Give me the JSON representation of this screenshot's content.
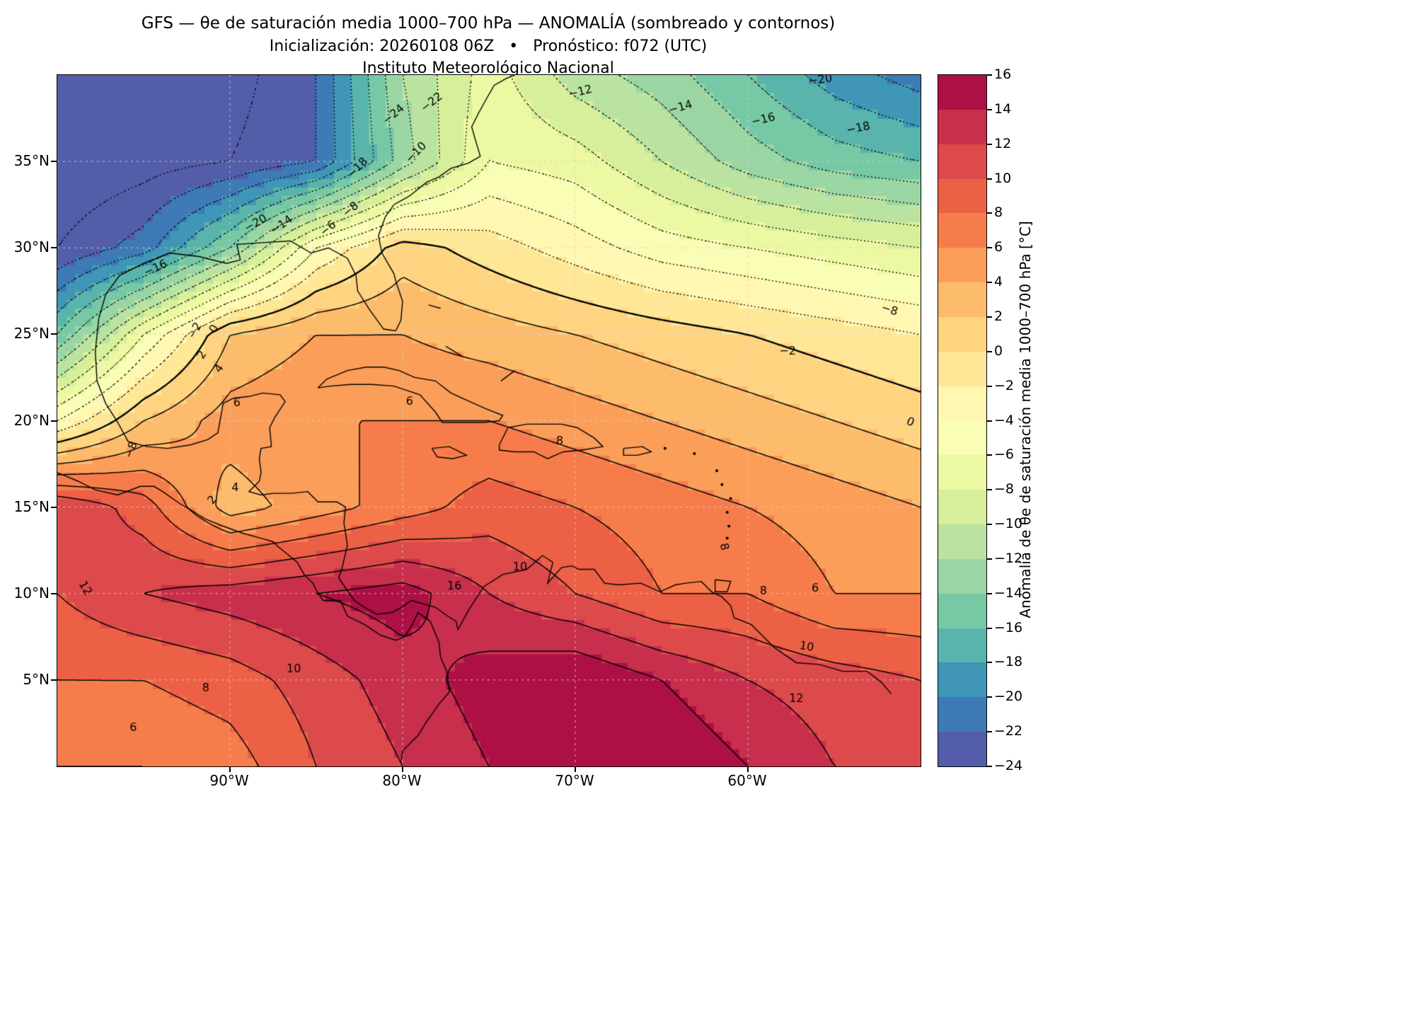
{
  "header": {
    "title": "GFS — θe de saturación media 1000–700 hPa — ANOMALÍA (sombreado y contornos)",
    "subtitle": "Inicialización: 20260108 06Z   •   Pronóstico: f072 (UTC)",
    "institution": "Instituto Meteorológico Nacional"
  },
  "map": {
    "lat_ticks": [
      {
        "v": 35,
        "label": "35°N"
      },
      {
        "v": 30,
        "label": "30°N"
      },
      {
        "v": 25,
        "label": "25°N"
      },
      {
        "v": 20,
        "label": "20°N"
      },
      {
        "v": 15,
        "label": "15°N"
      },
      {
        "v": 10,
        "label": "10°N"
      },
      {
        "v": 5,
        "label": "5°N"
      }
    ],
    "lon_ticks": [
      {
        "v": -90,
        "label": "90°W"
      },
      {
        "v": -80,
        "label": "80°W"
      },
      {
        "v": -70,
        "label": "70°W"
      },
      {
        "v": -60,
        "label": "60°W"
      }
    ],
    "grid_dashed": true
  },
  "colorbar": {
    "label": "Anomalía de θe de saturación media 1000–700 hPa [°C]",
    "min": -24,
    "max": 16,
    "step": 2,
    "colors": [
      "#535DA9",
      "#3D7AB6",
      "#3F96B7",
      "#59B4AB",
      "#77C9A5",
      "#9AD6A4",
      "#BAE3A1",
      "#D7EF9B",
      "#ECF8A2",
      "#F9FDB5",
      "#FFF7B2",
      "#FEE898",
      "#FED481",
      "#FDBB6C",
      "#FB9E5A",
      "#F67D4B",
      "#EC6146",
      "#DD4A4C",
      "#C72F4C",
      "#AC1045"
    ],
    "tick_values": [
      16,
      14,
      12,
      10,
      8,
      6,
      4,
      2,
      0,
      -2,
      -4,
      -6,
      -8,
      -10,
      -12,
      -14,
      -16,
      -18,
      -20,
      -22,
      -24
    ],
    "tick_labels": [
      "16",
      "14",
      "12",
      "10",
      "8",
      "6",
      "4",
      "2",
      "0",
      "−2",
      "−4",
      "−6",
      "−8",
      "−10",
      "−12",
      "−14",
      "−16",
      "−18",
      "−20",
      "−22",
      "−24"
    ]
  },
  "chart_data": {
    "type": "heatmap",
    "title": "GFS — θe de saturación media 1000–700 hPa — ANOMALÍA (sombreado y contornos)",
    "xlabel": "",
    "ylabel": "",
    "units": "°C",
    "colormap": "Spectral_r",
    "contour_interval": 2,
    "negative_contours_dotted": true,
    "lon_range": [
      -100,
      -50
    ],
    "lat_range": [
      0,
      40
    ],
    "lon": [
      -100,
      -95,
      -90,
      -85,
      -80,
      -75,
      -70,
      -65,
      -60,
      -55,
      -50
    ],
    "lat": [
      40,
      35,
      30,
      25,
      20,
      15,
      10,
      5,
      0
    ],
    "values": [
      [
        -26,
        -26,
        -25,
        -22,
        -12,
        -7,
        -11,
        -13,
        -16,
        -19,
        -21
      ],
      [
        -26,
        -25,
        -24,
        -22,
        -13,
        -6,
        -7,
        -10,
        -13,
        -15,
        -16
      ],
      [
        -24,
        -21,
        -14,
        -4,
        1,
        -1,
        -3,
        -5,
        -6,
        -7,
        -8
      ],
      [
        -16,
        -6,
        2,
        4,
        4,
        3,
        2,
        1,
        0,
        -1,
        -2
      ],
      [
        -4,
        2,
        5,
        6,
        6,
        6,
        5,
        4,
        3,
        2,
        1
      ],
      [
        12,
        9,
        3,
        5,
        7,
        9,
        8,
        7,
        6,
        5,
        4
      ],
      [
        10,
        12,
        13,
        14,
        15,
        12,
        10,
        8,
        8,
        6,
        6
      ],
      [
        8,
        8,
        9,
        11,
        13,
        15,
        16,
        14,
        12,
        11,
        10
      ],
      [
        6,
        6,
        7,
        10,
        12,
        14,
        16,
        16,
        14,
        12,
        12
      ]
    ],
    "contour_labels": [
      {
        "t": "−24",
        "lon": -80.5,
        "lat": 37.7,
        "r": -40
      },
      {
        "t": "−22",
        "lon": -78.3,
        "lat": 38.4,
        "r": -38
      },
      {
        "t": "−18",
        "lon": -82.6,
        "lat": 34.6,
        "r": -45
      },
      {
        "t": "−20",
        "lon": -88.5,
        "lat": 31.4,
        "r": -30
      },
      {
        "t": "−16",
        "lon": -94.3,
        "lat": 28.8,
        "r": -25
      },
      {
        "t": "−14",
        "lon": -87.0,
        "lat": 31.3,
        "r": -35
      },
      {
        "t": "−10",
        "lon": -79.2,
        "lat": 35.5,
        "r": -45
      },
      {
        "t": "−8",
        "lon": -83.0,
        "lat": 32.2,
        "r": -40
      },
      {
        "t": "−6",
        "lon": -84.3,
        "lat": 31.1,
        "r": -40
      },
      {
        "t": "−12",
        "lon": -69.7,
        "lat": 39.0,
        "r": -14
      },
      {
        "t": "−14",
        "lon": -63.9,
        "lat": 38.1,
        "r": -16
      },
      {
        "t": "−16",
        "lon": -59.1,
        "lat": 37.4,
        "r": -14
      },
      {
        "t": "−18",
        "lon": -53.6,
        "lat": 36.9,
        "r": -12
      },
      {
        "t": "−20",
        "lon": -55.8,
        "lat": 39.7,
        "r": -8
      },
      {
        "t": "−2",
        "lon": -92.0,
        "lat": 25.2,
        "r": -60
      },
      {
        "t": "0",
        "lon": -90.9,
        "lat": 25.3,
        "r": -60
      },
      {
        "t": "2",
        "lon": -91.6,
        "lat": 23.8,
        "r": -58
      },
      {
        "t": "4",
        "lon": -90.6,
        "lat": 23.0,
        "r": -55
      },
      {
        "t": "−2",
        "lon": -57.7,
        "lat": 24.0,
        "r": 0
      },
      {
        "t": "−8",
        "lon": -51.8,
        "lat": 26.4,
        "r": 18
      },
      {
        "t": "0",
        "lon": -50.6,
        "lat": 19.9,
        "r": 24
      },
      {
        "t": "6",
        "lon": -79.6,
        "lat": 21.1,
        "r": 0
      },
      {
        "t": "6",
        "lon": -89.6,
        "lat": 21.0,
        "r": 0
      },
      {
        "t": "−8",
        "lon": -95.7,
        "lat": 18.3,
        "r": -70
      },
      {
        "t": "4",
        "lon": -89.7,
        "lat": 16.1,
        "r": 0
      },
      {
        "t": "2",
        "lon": -91.0,
        "lat": 15.4,
        "r": -50
      },
      {
        "t": "8",
        "lon": -70.9,
        "lat": 18.8,
        "r": 0
      },
      {
        "t": "10",
        "lon": -73.2,
        "lat": 11.5,
        "r": 0
      },
      {
        "t": "16",
        "lon": -77.0,
        "lat": 10.4,
        "r": 0
      },
      {
        "t": "8",
        "lon": -61.4,
        "lat": 12.7,
        "r": 75
      },
      {
        "t": "8",
        "lon": -59.1,
        "lat": 10.1,
        "r": 0
      },
      {
        "t": "6",
        "lon": -56.1,
        "lat": 10.3,
        "r": 0
      },
      {
        "t": "10",
        "lon": -56.6,
        "lat": 6.9,
        "r": 10
      },
      {
        "t": "10",
        "lon": -86.3,
        "lat": 5.6,
        "r": 0
      },
      {
        "t": "8",
        "lon": -91.4,
        "lat": 4.5,
        "r": 0
      },
      {
        "t": "12",
        "lon": -57.2,
        "lat": 3.9,
        "r": 0
      },
      {
        "t": "6",
        "lon": -95.6,
        "lat": 2.2,
        "r": 0
      },
      {
        "t": "12",
        "lon": -98.4,
        "lat": 10.3,
        "r": 60
      }
    ],
    "coastlines": [
      [
        [
          -97.6,
          25.9
        ],
        [
          -97.2,
          27.3
        ],
        [
          -96.4,
          28.4
        ],
        [
          -95.0,
          29.1
        ],
        [
          -93.5,
          29.7
        ],
        [
          -91.8,
          29.5
        ],
        [
          -90.2,
          29.1
        ],
        [
          -89.4,
          29.3
        ],
        [
          -89.6,
          30.2
        ],
        [
          -88.1,
          30.3
        ],
        [
          -86.5,
          30.4
        ],
        [
          -85.3,
          29.7
        ],
        [
          -84.3,
          30.0
        ],
        [
          -83.2,
          29.4
        ],
        [
          -82.7,
          28.4
        ],
        [
          -82.6,
          27.5
        ],
        [
          -81.9,
          26.4
        ],
        [
          -81.1,
          25.3
        ],
        [
          -80.4,
          25.2
        ],
        [
          -80.1,
          25.8
        ],
        [
          -80.0,
          26.9
        ],
        [
          -80.4,
          28.1
        ],
        [
          -80.5,
          28.5
        ],
        [
          -81.2,
          29.7
        ],
        [
          -81.4,
          30.7
        ],
        [
          -81.0,
          31.8
        ],
        [
          -80.5,
          32.5
        ],
        [
          -79.6,
          33.0
        ],
        [
          -78.6,
          33.8
        ],
        [
          -77.9,
          34.1
        ],
        [
          -77.2,
          34.6
        ],
        [
          -76.2,
          34.9
        ],
        [
          -75.5,
          35.3
        ],
        [
          -75.8,
          36.3
        ],
        [
          -76.0,
          37.0
        ],
        [
          -75.6,
          37.8
        ],
        [
          -75.1,
          38.7
        ],
        [
          -74.7,
          39.4
        ],
        [
          -74.0,
          39.8
        ],
        [
          -73.5,
          40.0
        ]
      ],
      [
        [
          -97.6,
          25.9
        ],
        [
          -97.8,
          24.0
        ],
        [
          -97.7,
          22.3
        ],
        [
          -97.2,
          21.0
        ],
        [
          -96.5,
          19.9
        ],
        [
          -95.9,
          18.8
        ],
        [
          -94.8,
          18.5
        ],
        [
          -93.6,
          18.4
        ],
        [
          -92.3,
          18.6
        ],
        [
          -91.3,
          18.9
        ],
        [
          -90.7,
          19.3
        ],
        [
          -90.5,
          20.4
        ],
        [
          -90.4,
          21.0
        ],
        [
          -89.8,
          21.3
        ],
        [
          -88.9,
          21.4
        ],
        [
          -88.1,
          21.6
        ],
        [
          -87.1,
          21.5
        ],
        [
          -86.8,
          21.1
        ],
        [
          -87.4,
          20.2
        ],
        [
          -87.7,
          19.6
        ],
        [
          -87.6,
          18.5
        ],
        [
          -88.2,
          18.4
        ],
        [
          -88.3,
          17.8
        ],
        [
          -88.2,
          17.0
        ],
        [
          -88.3,
          16.5
        ],
        [
          -88.9,
          15.9
        ],
        [
          -88.2,
          15.7
        ],
        [
          -87.5,
          15.8
        ],
        [
          -86.4,
          15.8
        ],
        [
          -85.5,
          15.9
        ],
        [
          -84.9,
          15.3
        ],
        [
          -83.8,
          15.3
        ],
        [
          -83.3,
          15.0
        ],
        [
          -83.4,
          14.1
        ],
        [
          -83.2,
          12.8
        ],
        [
          -83.5,
          11.5
        ],
        [
          -83.7,
          10.9
        ],
        [
          -82.8,
          9.6
        ],
        [
          -82.2,
          9.2
        ],
        [
          -81.5,
          8.8
        ],
        [
          -80.6,
          8.9
        ],
        [
          -79.9,
          9.3
        ],
        [
          -79.5,
          9.6
        ],
        [
          -78.8,
          9.4
        ],
        [
          -78.1,
          9.2
        ],
        [
          -77.4,
          8.7
        ],
        [
          -76.9,
          8.4
        ],
        [
          -76.8,
          7.9
        ]
      ],
      [
        [
          -76.8,
          7.9
        ],
        [
          -76.2,
          9.0
        ],
        [
          -75.3,
          10.4
        ],
        [
          -74.2,
          11.1
        ],
        [
          -72.8,
          11.4
        ],
        [
          -71.9,
          12.2
        ],
        [
          -71.3,
          11.8
        ],
        [
          -71.6,
          10.6
        ],
        [
          -70.8,
          11.5
        ],
        [
          -70.2,
          11.6
        ],
        [
          -69.8,
          11.4
        ],
        [
          -68.9,
          11.4
        ],
        [
          -68.3,
          10.6
        ],
        [
          -67.5,
          10.5
        ],
        [
          -66.2,
          10.6
        ],
        [
          -65.1,
          10.1
        ],
        [
          -64.2,
          10.5
        ],
        [
          -63.6,
          10.6
        ],
        [
          -62.7,
          10.7
        ],
        [
          -62.1,
          10.1
        ],
        [
          -61.5,
          9.8
        ],
        [
          -61.0,
          9.3
        ],
        [
          -60.8,
          8.6
        ],
        [
          -59.8,
          8.2
        ],
        [
          -58.5,
          6.9
        ],
        [
          -57.2,
          6.0
        ],
        [
          -55.9,
          5.9
        ],
        [
          -54.5,
          5.5
        ],
        [
          -53.1,
          5.5
        ],
        [
          -52.3,
          4.9
        ],
        [
          -51.7,
          4.2
        ]
      ],
      [
        [
          -100.0,
          17.0
        ],
        [
          -98.8,
          16.5
        ],
        [
          -97.8,
          16.0
        ],
        [
          -96.5,
          15.7
        ],
        [
          -95.2,
          16.2
        ],
        [
          -94.4,
          16.2
        ],
        [
          -93.9,
          15.9
        ],
        [
          -92.9,
          15.2
        ],
        [
          -92.2,
          14.8
        ],
        [
          -91.4,
          14.3
        ],
        [
          -90.4,
          13.9
        ],
        [
          -89.3,
          13.5
        ],
        [
          -88.2,
          13.2
        ],
        [
          -87.5,
          13.0
        ],
        [
          -87.2,
          12.7
        ],
        [
          -86.7,
          12.3
        ],
        [
          -86.1,
          11.8
        ],
        [
          -85.7,
          11.1
        ],
        [
          -85.2,
          10.6
        ],
        [
          -84.9,
          10.0
        ],
        [
          -84.6,
          9.6
        ],
        [
          -83.6,
          9.6
        ],
        [
          -83.2,
          8.7
        ],
        [
          -82.2,
          8.2
        ],
        [
          -81.3,
          7.6
        ],
        [
          -80.4,
          7.3
        ],
        [
          -79.9,
          7.5
        ],
        [
          -79.5,
          8.1
        ],
        [
          -79.1,
          8.9
        ],
        [
          -78.4,
          8.4
        ],
        [
          -77.9,
          7.2
        ],
        [
          -77.8,
          6.3
        ],
        [
          -77.4,
          5.4
        ],
        [
          -77.3,
          4.3
        ],
        [
          -77.9,
          3.6
        ],
        [
          -78.6,
          2.6
        ],
        [
          -79.1,
          1.8
        ],
        [
          -80.0,
          0.9
        ],
        [
          -80.1,
          0.2
        ]
      ],
      [
        [
          -84.9,
          21.9
        ],
        [
          -84.4,
          22.4
        ],
        [
          -83.2,
          22.9
        ],
        [
          -82.1,
          23.1
        ],
        [
          -81.1,
          23.1
        ],
        [
          -80.2,
          22.9
        ],
        [
          -79.3,
          22.5
        ],
        [
          -78.1,
          22.3
        ],
        [
          -77.2,
          21.6
        ],
        [
          -76.1,
          21.1
        ],
        [
          -75.2,
          20.7
        ],
        [
          -74.2,
          20.3
        ],
        [
          -74.4,
          20.0
        ],
        [
          -75.3,
          19.9
        ],
        [
          -76.5,
          19.9
        ],
        [
          -77.7,
          19.9
        ],
        [
          -78.1,
          20.5
        ],
        [
          -79.0,
          21.5
        ],
        [
          -80.5,
          22.0
        ],
        [
          -81.8,
          22.1
        ],
        [
          -83.0,
          22.1
        ],
        [
          -84.2,
          22.0
        ],
        [
          -84.9,
          21.9
        ]
      ],
      [
        [
          -74.4,
          18.6
        ],
        [
          -73.9,
          19.6
        ],
        [
          -72.8,
          19.8
        ],
        [
          -71.7,
          19.8
        ],
        [
          -70.8,
          19.8
        ],
        [
          -69.9,
          19.6
        ],
        [
          -68.9,
          19.0
        ],
        [
          -68.4,
          18.5
        ],
        [
          -69.6,
          18.3
        ],
        [
          -70.7,
          18.2
        ],
        [
          -71.6,
          17.8
        ],
        [
          -72.4,
          18.2
        ],
        [
          -73.5,
          18.2
        ],
        [
          -74.4,
          18.3
        ],
        [
          -74.4,
          18.6
        ]
      ],
      [
        [
          -78.3,
          18.4
        ],
        [
          -77.3,
          18.5
        ],
        [
          -76.3,
          18.0
        ],
        [
          -77.1,
          17.8
        ],
        [
          -78.0,
          17.9
        ],
        [
          -78.3,
          18.4
        ]
      ],
      [
        [
          -67.2,
          18.4
        ],
        [
          -66.1,
          18.5
        ],
        [
          -65.6,
          18.2
        ],
        [
          -66.4,
          18.0
        ],
        [
          -67.2,
          18.0
        ],
        [
          -67.2,
          18.4
        ]
      ],
      [
        [
          -61.9,
          10.8
        ],
        [
          -61.0,
          10.7
        ],
        [
          -61.2,
          10.1
        ],
        [
          -61.9,
          10.1
        ],
        [
          -61.9,
          10.8
        ]
      ],
      [
        [
          -78.5,
          26.7
        ],
        [
          -77.8,
          26.5
        ]
      ],
      [
        [
          -77.5,
          24.3
        ],
        [
          -76.5,
          23.7
        ]
      ],
      [
        [
          -73.5,
          22.9
        ],
        [
          -74.3,
          22.3
        ]
      ]
    ],
    "islets": [
      [
        -61.2,
        13.2
      ],
      [
        -61.1,
        13.9
      ],
      [
        -61.2,
        14.7
      ],
      [
        -61.0,
        15.5
      ],
      [
        -61.5,
        16.3
      ],
      [
        -61.8,
        17.1
      ],
      [
        -63.1,
        18.1
      ],
      [
        -64.8,
        18.4
      ]
    ]
  }
}
